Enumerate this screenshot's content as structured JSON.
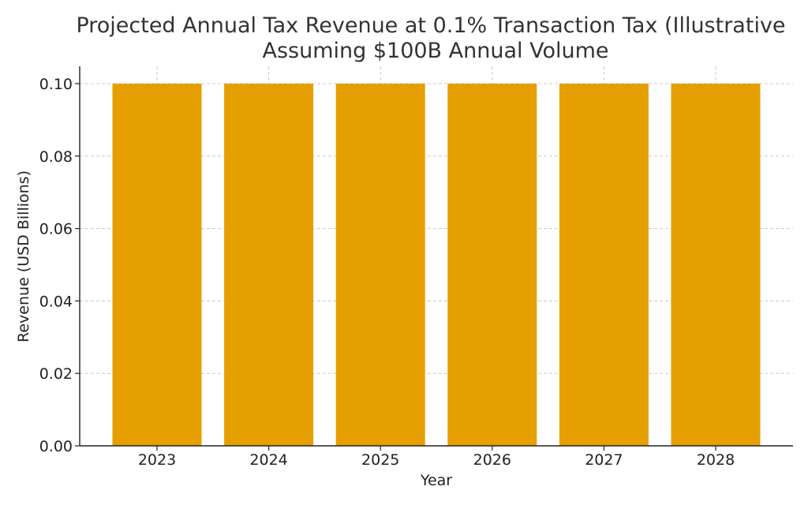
{
  "chart_data": {
    "type": "bar",
    "title": "Projected Annual Tax Revenue at 0.1% Transaction Tax (Illustrative",
    "subtitle": "Assuming $100B Annual Volume",
    "xlabel": "Year",
    "ylabel": "Revenue (USD Billions)",
    "categories": [
      "2023",
      "2024",
      "2025",
      "2026",
      "2027",
      "2028"
    ],
    "values": [
      0.1,
      0.1,
      0.1,
      0.1,
      0.1,
      0.1
    ],
    "ylim": [
      0,
      0.1
    ],
    "yticks": [
      "0.00",
      "0.02",
      "0.04",
      "0.06",
      "0.08",
      "0.10"
    ],
    "grid": true,
    "bar_color": "#E69F00"
  }
}
